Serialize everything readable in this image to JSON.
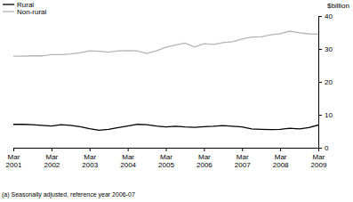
{
  "chart_data": {
    "type": "line",
    "y_label": "$billion",
    "annotations": [
      "(a) Seasonally adjusted, reference year 2006-07"
    ],
    "categories": [
      "Mar 2001",
      null,
      null,
      null,
      "Mar 2002",
      null,
      null,
      null,
      "Mar 2003",
      null,
      null,
      null,
      "Mar 2004",
      null,
      null,
      null,
      "Mar 2005",
      null,
      null,
      null,
      "Mar 2006",
      null,
      null,
      null,
      "Mar 2007",
      null,
      null,
      null,
      "Mar 2008",
      null,
      null,
      null,
      "Mar 2009"
    ],
    "series": [
      {
        "name": "Rural",
        "color": "#000000",
        "values": [
          7.1,
          7.1,
          7.0,
          6.8,
          6.6,
          7.0,
          6.8,
          6.4,
          5.8,
          5.3,
          5.6,
          6.1,
          6.6,
          7.1,
          7.0,
          6.6,
          6.3,
          6.5,
          6.3,
          6.2,
          6.4,
          6.5,
          6.7,
          6.5,
          6.3,
          5.7,
          5.6,
          5.5,
          5.6,
          5.9,
          5.7,
          6.1,
          6.9
        ]
      },
      {
        "name": "Non-rural",
        "color": "#b4b4b4",
        "values": [
          27.8,
          27.8,
          27.9,
          27.9,
          28.3,
          28.3,
          28.5,
          28.8,
          29.4,
          29.3,
          29.0,
          29.4,
          29.5,
          29.4,
          28.6,
          29.4,
          30.5,
          31.2,
          31.8,
          30.6,
          31.6,
          31.4,
          31.9,
          32.2,
          33.0,
          33.6,
          33.7,
          34.3,
          34.6,
          35.4,
          34.9,
          34.6,
          34.5
        ]
      }
    ],
    "ylim": [
      0,
      40
    ],
    "yticks": [
      0,
      10,
      20,
      30,
      40
    ],
    "grid": false,
    "legend": "top-left"
  }
}
